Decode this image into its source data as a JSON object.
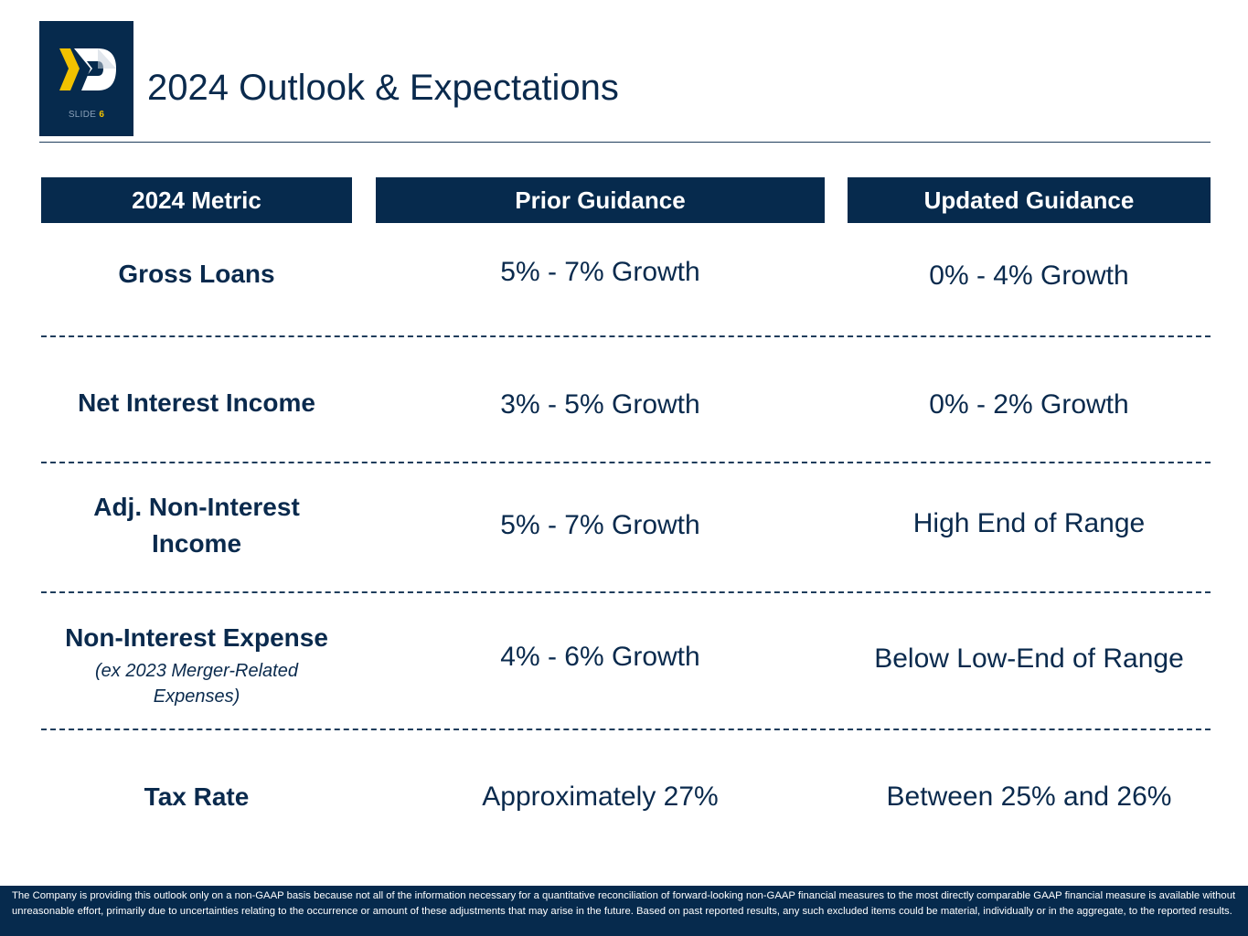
{
  "header": {
    "title": "2024 Outlook & Expectations",
    "slide_label": "SLIDE",
    "slide_number": "6",
    "logo_colors": {
      "chevron": "#f2c200",
      "mark": "#ffffff",
      "background": "#062a4d"
    }
  },
  "table": {
    "columns": [
      "2024 Metric",
      "Prior Guidance",
      "Updated Guidance"
    ],
    "rows": [
      {
        "metric": "Gross Loans",
        "note": "",
        "prior": "5% - 7% Growth",
        "updated": "0% - 4% Growth"
      },
      {
        "metric": "Net Interest Income",
        "note": "",
        "prior": "3% - 5% Growth",
        "updated": "0% - 2% Growth"
      },
      {
        "metric": "Adj. Non-Interest Income",
        "note": "",
        "prior": "5% - 7% Growth",
        "updated": "High End of Range"
      },
      {
        "metric": "Non-Interest Expense",
        "note": "(ex 2023 Merger-Related Expenses)",
        "prior": "4% - 6% Growth",
        "updated": "Below Low-End of Range"
      },
      {
        "metric": "Tax Rate",
        "note": "",
        "prior": "Approximately 27%",
        "updated": "Between 25% and 26%"
      }
    ]
  },
  "footer": {
    "disclaimer": "The Company is providing this outlook only on a non-GAAP basis because not all of the information necessary for a quantitative reconciliation of forward-looking non-GAAP financial measures to the most directly comparable GAAP financial measure is available without unreasonable effort, primarily due to uncertainties relating to the occurrence or amount of these adjustments that may arise in the future. Based on past reported results, any such excluded items could be material, individually or in the aggregate, to the reported results."
  }
}
